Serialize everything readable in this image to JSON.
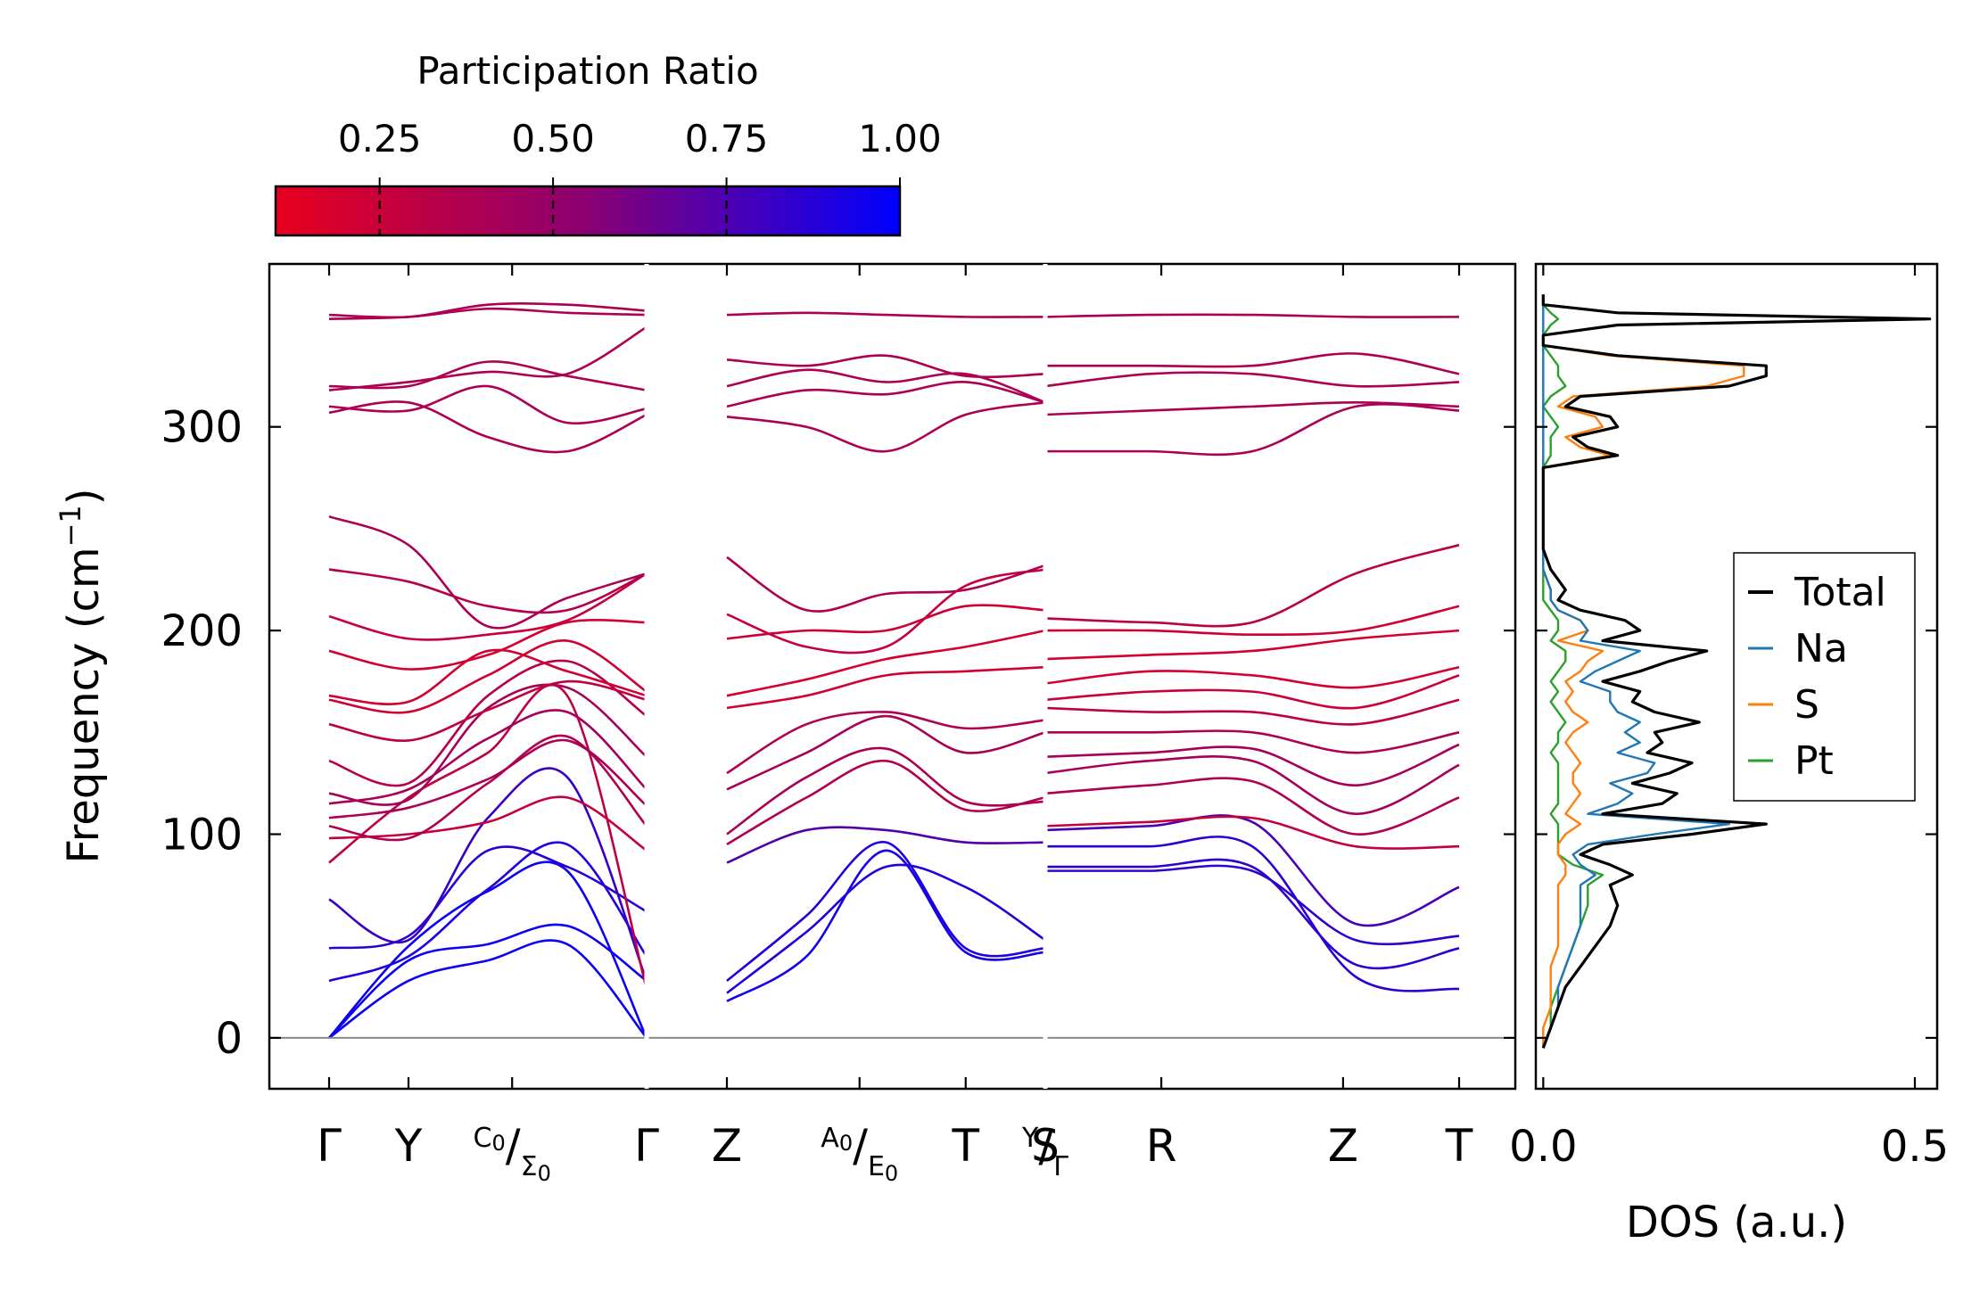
{
  "chart_data": [
    {
      "type": "line",
      "subtype": "phonon-band-structure",
      "ylabel_main": "Frequency (cm",
      "ylabel_sup": "−1",
      "ylabel_close": ")",
      "ylim": [
        -25,
        380
      ],
      "yticks": [
        0,
        100,
        200,
        300
      ],
      "ytick_labels": [
        "0",
        "100",
        "200",
        "300"
      ],
      "zero_line": true,
      "segments": [
        {
          "name": "Γ-Y-C0/Σ0-Γ",
          "points": [
            "Γ",
            "Y",
            "C0/Σ0",
            "Γ"
          ],
          "rel_pos": [
            0,
            0.3,
            0.6917,
            1.2
          ]
        },
        {
          "name": "Z-A0/E0-T-Y/Γ",
          "points": [
            "Z",
            "A0/E0",
            "T",
            "Y/Γ"
          ],
          "rel_pos": [
            0,
            0.5,
            0.9,
            1.2
          ]
        },
        {
          "name": "S-R-Z-T",
          "points": [
            "S",
            "R",
            "Z",
            "T"
          ],
          "rel_pos": [
            0,
            0.3,
            0.77,
            1.07
          ]
        }
      ],
      "first_segment_lead": [
        "Γ",
        "Y",
        "C0/Σ0",
        "Γ"
      ],
      "xtick_labels": [
        {
          "main": "Γ"
        },
        {
          "main": "Y"
        },
        {
          "sup": "C",
          "sup_sub": "0",
          "slash": "/",
          "sub": "Σ",
          "sub_sub": "0"
        },
        {
          "main": "Γ"
        },
        {
          "main": "Z"
        },
        {
          "sup": "A",
          "sup_sub": "0",
          "slash": "/",
          "sub": "E",
          "sub_sub": "0"
        },
        {
          "main": "T"
        },
        {
          "sup": "Y",
          "sup_sub": "",
          "slash": "/",
          "sub": "Γ",
          "sub_sub": ""
        },
        {
          "main": "S"
        },
        {
          "main": "R"
        },
        {
          "main": "Z"
        },
        {
          "main": "T"
        }
      ],
      "bands": {
        "seg1": [
          [
            0,
            28,
            38,
            46,
            0
          ],
          [
            0,
            38,
            46,
            55,
            28
          ],
          [
            0,
            45,
            72,
            82,
            0
          ],
          [
            28,
            40,
            73,
            95,
            40
          ],
          [
            44,
            50,
            92,
            84,
            62
          ],
          [
            68,
            48,
            108,
            128,
            28
          ],
          [
            86,
            118,
            140,
            168,
            24
          ],
          [
            98,
            100,
            106,
            118,
            92
          ],
          [
            104,
            98,
            125,
            148,
            104
          ],
          [
            108,
            113,
            127,
            146,
            114
          ],
          [
            115,
            122,
            147,
            160,
            122
          ],
          [
            120,
            117,
            162,
            172,
            138
          ],
          [
            136,
            125,
            168,
            185,
            158
          ],
          [
            154,
            146,
            161,
            175,
            166
          ],
          [
            166,
            160,
            178,
            195,
            170
          ],
          [
            168,
            165,
            190,
            180,
            168
          ],
          [
            190,
            181,
            188,
            204,
            204
          ],
          [
            207,
            196,
            198,
            205,
            228
          ],
          [
            230,
            224,
            212,
            210,
            228
          ],
          [
            256,
            242,
            202,
            216,
            228
          ],
          [
            307,
            312,
            295,
            288,
            306
          ],
          [
            310,
            308,
            320,
            302,
            309
          ],
          [
            318,
            322,
            327,
            326,
            349
          ],
          [
            320,
            320,
            332,
            325,
            318
          ],
          [
            353,
            354,
            358,
            356,
            355
          ],
          [
            355,
            354,
            360,
            360,
            357
          ]
        ],
        "seg2": [
          [
            18,
            40,
            92,
            42,
            42
          ],
          [
            22,
            52,
            84,
            74,
            48
          ],
          [
            28,
            60,
            96,
            44,
            44
          ],
          [
            86,
            102,
            102,
            96,
            96
          ],
          [
            95,
            118,
            136,
            112,
            118
          ],
          [
            100,
            128,
            142,
            116,
            116
          ],
          [
            122,
            140,
            158,
            140,
            150
          ],
          [
            130,
            154,
            160,
            152,
            156
          ],
          [
            162,
            168,
            178,
            180,
            182
          ],
          [
            168,
            176,
            186,
            192,
            200
          ],
          [
            196,
            200,
            200,
            212,
            210
          ],
          [
            208,
            192,
            192,
            222,
            230
          ],
          [
            236,
            210,
            218,
            220,
            232
          ],
          [
            305,
            300,
            288,
            306,
            312
          ],
          [
            310,
            318,
            316,
            322,
            312
          ],
          [
            320,
            328,
            322,
            326,
            312
          ],
          [
            333,
            330,
            335,
            325,
            326
          ],
          [
            355,
            356,
            355,
            354,
            354
          ]
        ],
        "seg3": [
          [
            94,
            94,
            94,
            30,
            24
          ],
          [
            84,
            84,
            84,
            36,
            44
          ],
          [
            82,
            82,
            82,
            48,
            50
          ],
          [
            102,
            104,
            106,
            56,
            74
          ],
          [
            104,
            106,
            108,
            94,
            94
          ],
          [
            120,
            124,
            126,
            100,
            118
          ],
          [
            130,
            136,
            136,
            110,
            134
          ],
          [
            138,
            140,
            142,
            124,
            144
          ],
          [
            150,
            150,
            150,
            140,
            150
          ],
          [
            162,
            160,
            160,
            154,
            166
          ],
          [
            166,
            170,
            170,
            162,
            178
          ],
          [
            174,
            180,
            178,
            172,
            182
          ],
          [
            186,
            188,
            190,
            196,
            200
          ],
          [
            200,
            200,
            198,
            200,
            212
          ],
          [
            206,
            204,
            204,
            228,
            242
          ],
          [
            288,
            288,
            288,
            310,
            308
          ],
          [
            306,
            308,
            310,
            312,
            310
          ],
          [
            320,
            326,
            326,
            320,
            322
          ],
          [
            330,
            330,
            330,
            336,
            326
          ],
          [
            354,
            355,
            355,
            354,
            354
          ]
        ]
      }
    },
    {
      "type": "line",
      "subtype": "density-of-states",
      "xlabel": "DOS (a.u.)",
      "xlim": [
        -0.01,
        0.53
      ],
      "xticks": [
        0,
        0.5
      ],
      "xtick_labels": [
        "0.0",
        "0.5"
      ],
      "legend_position": "center-right",
      "series": [
        {
          "name": "Total",
          "color": "#000000",
          "key": "total"
        },
        {
          "name": "Na",
          "color": "#1f77b4",
          "key": "na"
        },
        {
          "name": "S",
          "color": "#ff7f0e",
          "key": "s"
        },
        {
          "name": "Pt",
          "color": "#2ca02c",
          "key": "pt"
        }
      ],
      "freq": [
        -5,
        5,
        15,
        25,
        35,
        45,
        55,
        65,
        75,
        80,
        85,
        90,
        95,
        100,
        105,
        110,
        115,
        120,
        125,
        130,
        135,
        140,
        145,
        150,
        155,
        160,
        165,
        170,
        175,
        180,
        185,
        190,
        195,
        200,
        205,
        210,
        215,
        220,
        230,
        240,
        250,
        260,
        280,
        286,
        290,
        295,
        300,
        305,
        310,
        315,
        320,
        325,
        330,
        335,
        340,
        345,
        350,
        353,
        356,
        360,
        365
      ],
      "total": [
        0.0,
        0.01,
        0.02,
        0.03,
        0.05,
        0.07,
        0.09,
        0.1,
        0.09,
        0.12,
        0.09,
        0.05,
        0.08,
        0.2,
        0.3,
        0.08,
        0.16,
        0.18,
        0.12,
        0.17,
        0.2,
        0.14,
        0.16,
        0.15,
        0.21,
        0.15,
        0.12,
        0.13,
        0.08,
        0.13,
        0.17,
        0.22,
        0.08,
        0.13,
        0.11,
        0.05,
        0.02,
        0.03,
        0.01,
        0.0,
        0.0,
        0.0,
        0.0,
        0.1,
        0.06,
        0.04,
        0.1,
        0.09,
        0.03,
        0.05,
        0.25,
        0.3,
        0.3,
        0.1,
        0.0,
        0.0,
        0.1,
        0.52,
        0.1,
        0.0,
        0.0
      ],
      "na": [
        0.0,
        0.01,
        0.02,
        0.02,
        0.03,
        0.04,
        0.05,
        0.05,
        0.05,
        0.07,
        0.05,
        0.04,
        0.06,
        0.15,
        0.25,
        0.06,
        0.1,
        0.12,
        0.09,
        0.14,
        0.15,
        0.1,
        0.13,
        0.11,
        0.13,
        0.1,
        0.09,
        0.09,
        0.05,
        0.07,
        0.1,
        0.13,
        0.05,
        0.06,
        0.05,
        0.02,
        0.01,
        0.01,
        0.0,
        0.0,
        0.0,
        0.0,
        0.0,
        0.0,
        0.0,
        0.0,
        0.0,
        0.0,
        0.0,
        0.0,
        0.0,
        0.0,
        0.0,
        0.0,
        0.0,
        0.0,
        0.0,
        0.0,
        0.0,
        0.0,
        0.0
      ],
      "s": [
        0.0,
        0.0,
        0.01,
        0.01,
        0.01,
        0.02,
        0.02,
        0.02,
        0.02,
        0.03,
        0.03,
        0.02,
        0.02,
        0.03,
        0.05,
        0.03,
        0.04,
        0.05,
        0.04,
        0.04,
        0.05,
        0.04,
        0.03,
        0.04,
        0.06,
        0.04,
        0.03,
        0.04,
        0.03,
        0.05,
        0.06,
        0.08,
        0.02,
        0.06,
        0.05,
        0.02,
        0.01,
        0.01,
        0.0,
        0.0,
        0.0,
        0.0,
        0.0,
        0.09,
        0.05,
        0.03,
        0.08,
        0.07,
        0.02,
        0.04,
        0.22,
        0.27,
        0.27,
        0.09,
        0.0,
        0.0,
        0.1,
        0.52,
        0.1,
        0.0,
        0.0
      ],
      "pt": [
        0.0,
        0.01,
        0.01,
        0.02,
        0.03,
        0.04,
        0.05,
        0.06,
        0.06,
        0.08,
        0.04,
        0.02,
        0.02,
        0.02,
        0.02,
        0.01,
        0.02,
        0.02,
        0.02,
        0.02,
        0.02,
        0.01,
        0.02,
        0.02,
        0.03,
        0.02,
        0.01,
        0.02,
        0.01,
        0.02,
        0.03,
        0.03,
        0.01,
        0.02,
        0.02,
        0.01,
        0.0,
        0.0,
        0.0,
        0.0,
        0.0,
        0.0,
        0.0,
        0.01,
        0.01,
        0.01,
        0.02,
        0.01,
        0.0,
        0.01,
        0.03,
        0.02,
        0.02,
        0.01,
        0.0,
        0.0,
        0.01,
        0.02,
        0.01,
        0.0,
        0.0
      ]
    }
  ],
  "colorbar": {
    "title": "Participation Ratio",
    "ticks": [
      0.25,
      0.5,
      0.75,
      1.0
    ],
    "tick_labels": [
      "0.25",
      "0.50",
      "0.75",
      "1.00"
    ],
    "range": [
      0.1,
      1.0
    ],
    "color_low": "#e8001e",
    "color_mid": "#8a0072",
    "color_high": "#0000ff"
  }
}
